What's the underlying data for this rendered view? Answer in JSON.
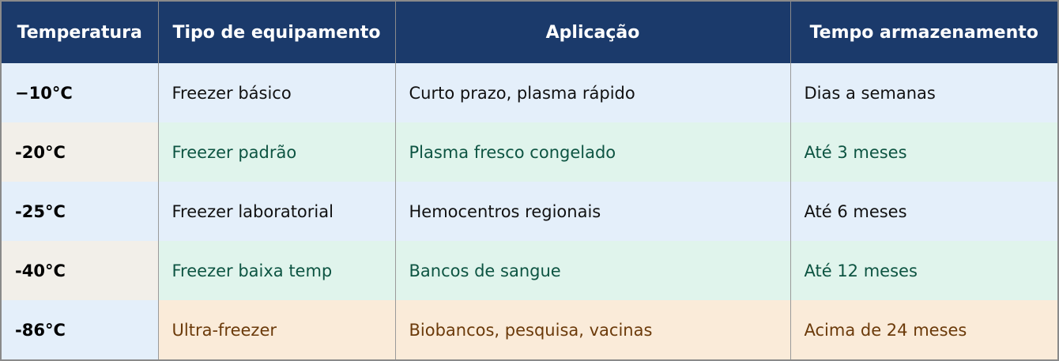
{
  "headers": [
    "Temperatura",
    "Tipo de equipamento",
    "Aplicação",
    "Tempo armazenamento"
  ],
  "rows": [
    {
      "style": "blue",
      "cells": [
        "−10°C",
        "Freezer básico",
        "Curto prazo, plasma rápido",
        "Dias a semanas"
      ]
    },
    {
      "style": "green",
      "cells": [
        "-20°C",
        "Freezer padrão",
        "Plasma fresco congelado",
        "Até 3 meses"
      ]
    },
    {
      "style": "blue",
      "cells": [
        "-25°C",
        "Freezer laboratorial",
        "Hemocentros regionais",
        "Até 6 meses"
      ]
    },
    {
      "style": "green",
      "cells": [
        "-40°C",
        "Freezer baixa temp",
        "Bancos de sangue",
        "Até 12 meses"
      ]
    },
    {
      "style": "orange",
      "cells": [
        "-86°C",
        "Ultra-freezer",
        "Biobancos, pesquisa, vacinas",
        "Acima de 24 meses"
      ]
    }
  ],
  "colors": {
    "header": "#1b3a6b",
    "row_blue": "#e4effa",
    "row_green": "#e0f4ec",
    "row_beige": "#f2efe9",
    "row_orange": "#faebd9",
    "text_green": "#0d5442",
    "text_brown": "#6b3a0a"
  }
}
